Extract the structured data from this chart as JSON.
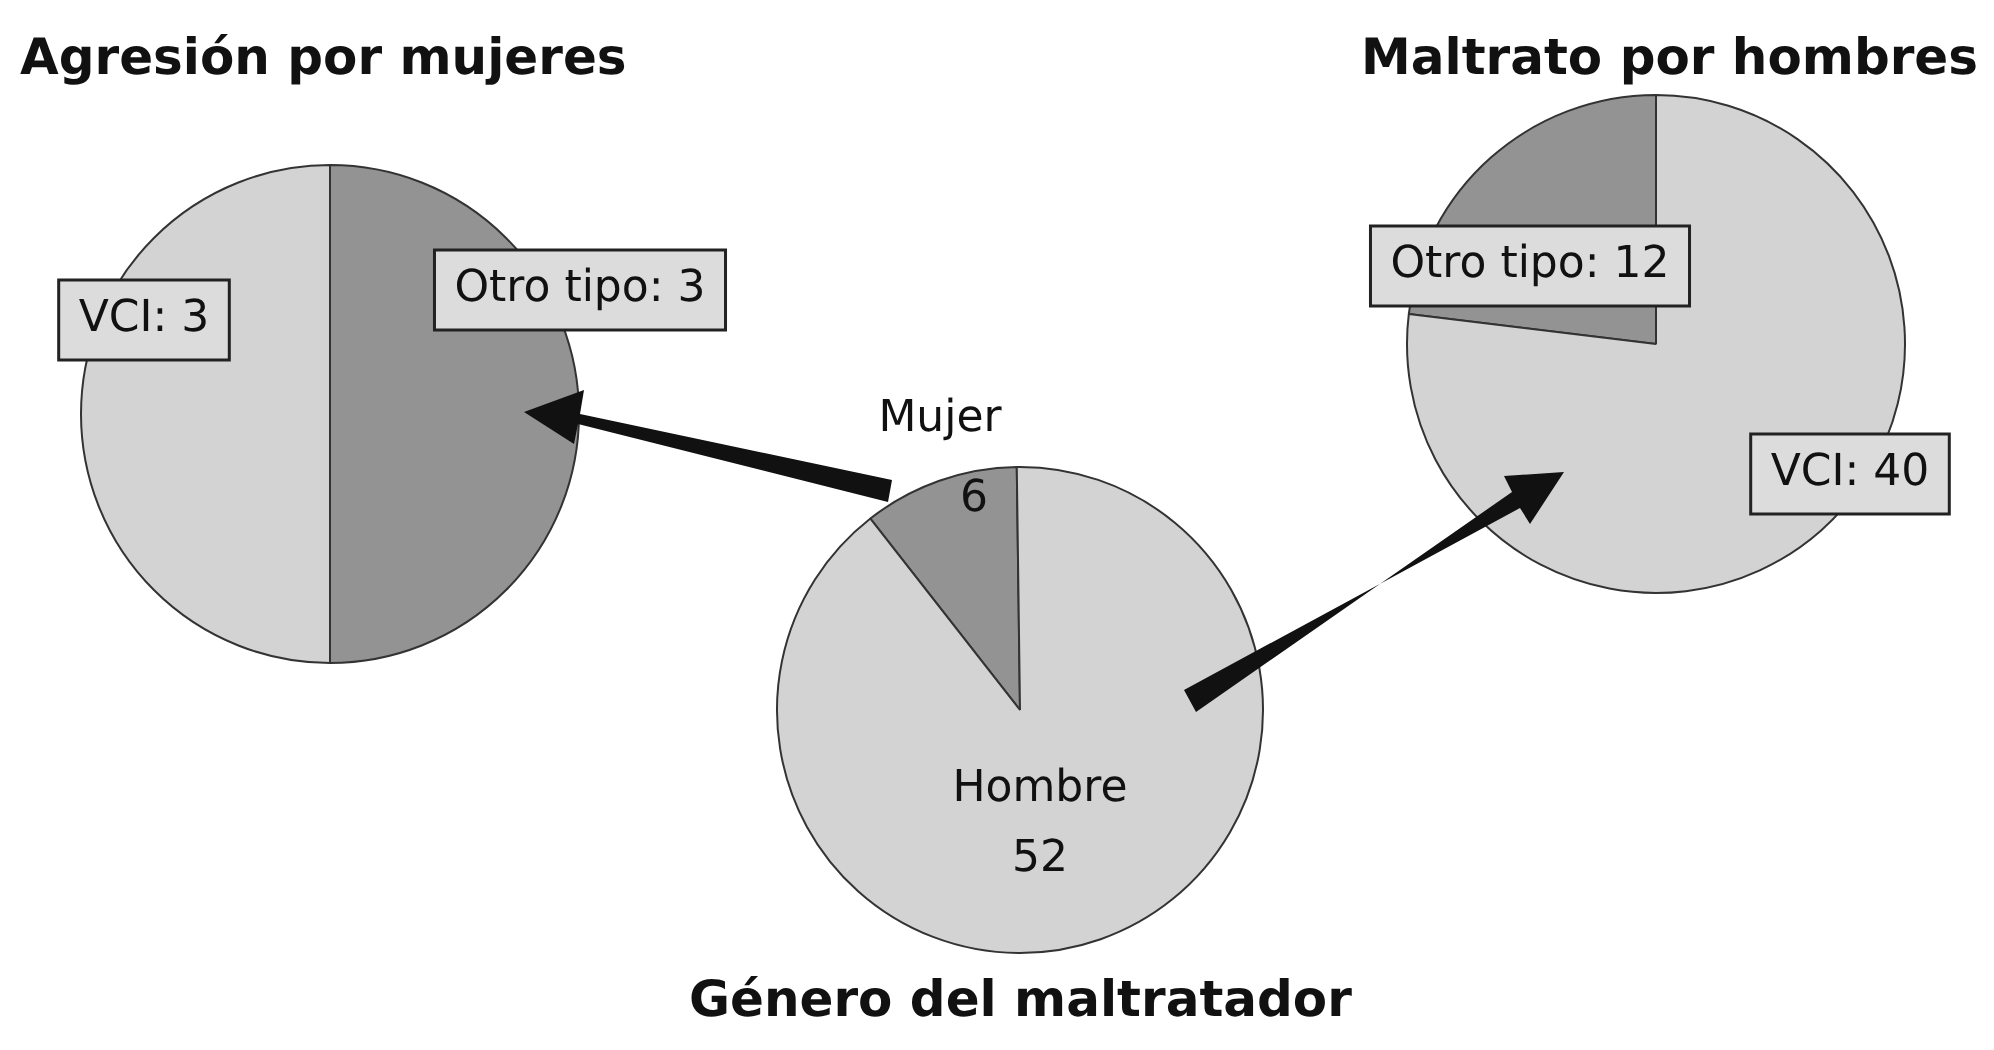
{
  "chart_data": [
    {
      "type": "pie",
      "title": "Agresión por mujeres",
      "categories": [
        "VCI",
        "Otro tipo"
      ],
      "values": [
        3,
        3
      ],
      "colors": [
        "#d3d3d3",
        "#939393"
      ],
      "value_labels": [
        ": 3",
        ": 3"
      ]
    },
    {
      "type": "pie",
      "title": "Maltrato por hombres",
      "categories": [
        "Otro tipo",
        "VCI"
      ],
      "values": [
        12,
        40
      ],
      "colors": [
        "#939393",
        "#d3d3d3"
      ],
      "value_labels": [
        ": 12",
        ": 40"
      ]
    },
    {
      "type": "pie",
      "title": "Género del maltratador",
      "categories": [
        "Mujer",
        "Hombre"
      ],
      "values": [
        6,
        52
      ],
      "colors": [
        "#939393",
        "#d3d3d3"
      ],
      "data_labels": true
    }
  ]
}
